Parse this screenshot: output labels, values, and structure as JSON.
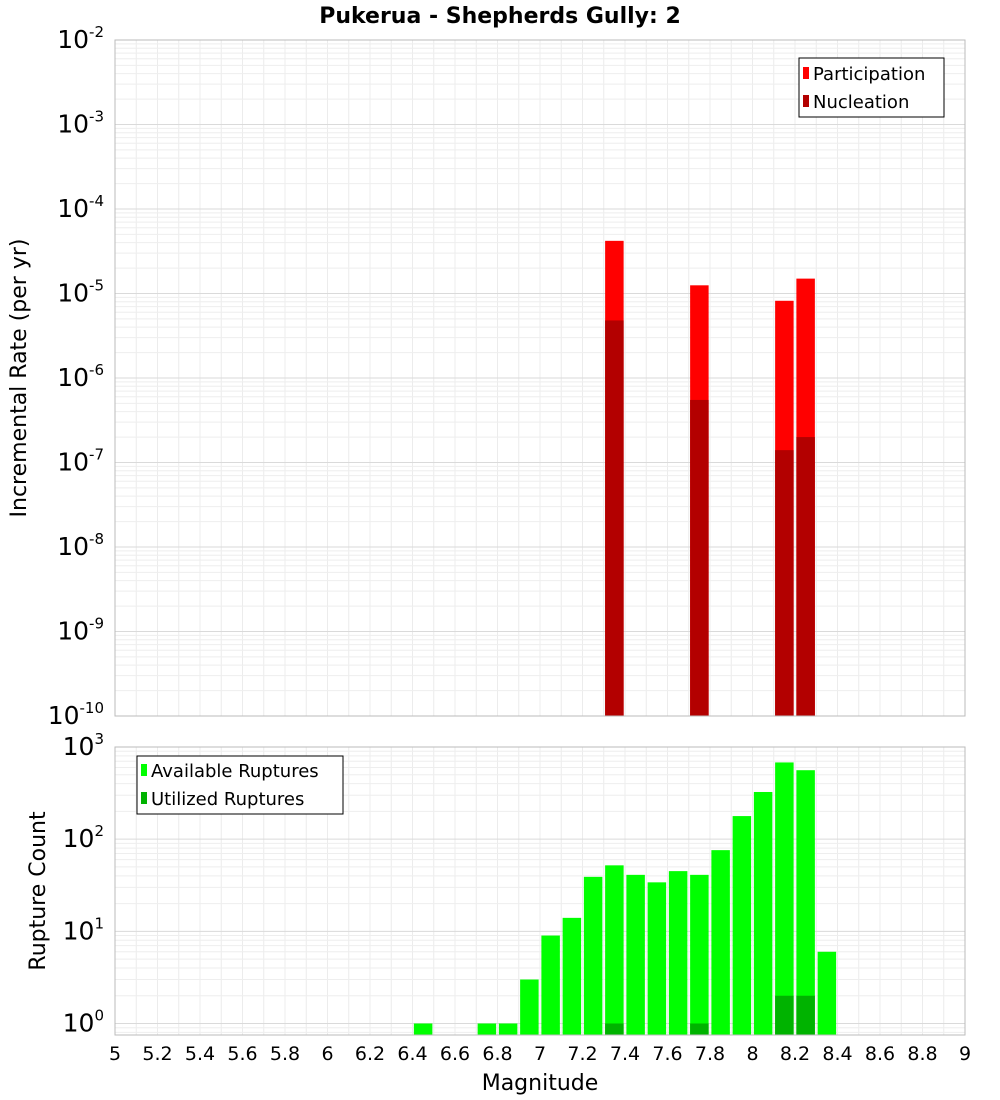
{
  "chart_data": [
    {
      "type": "bar",
      "title": "Pukerua - Shepherds Gully: 2",
      "xlabel": "Magnitude",
      "ylabel": "Incremental Rate (per yr)",
      "yscale": "log",
      "xlim": [
        5,
        9
      ],
      "ylim": [
        1e-10,
        0.01
      ],
      "y_tick_exponents": [
        -2,
        -3,
        -4,
        -5,
        -6,
        -7,
        -8,
        -9,
        -10
      ],
      "legend_position": "top-right",
      "grid": true,
      "series": [
        {
          "name": "Participation",
          "color": "#ff0000",
          "x": [
            7.35,
            7.75,
            8.15,
            8.25
          ],
          "values": [
            4.2e-05,
            1.25e-05,
            8.2e-06,
            1.5e-05
          ]
        },
        {
          "name": "Nucleation",
          "color": "#b30000",
          "x": [
            7.35,
            7.75,
            8.15,
            8.25
          ],
          "values": [
            4.8e-06,
            5.5e-07,
            1.4e-07,
            2e-07
          ]
        }
      ]
    },
    {
      "type": "bar",
      "xlabel": "Magnitude",
      "ylabel": "Rupture Count",
      "yscale": "log",
      "xlim": [
        5,
        9
      ],
      "ylim": [
        0.75,
        1000
      ],
      "y_tick_exponents": [
        3,
        2,
        1,
        0
      ],
      "x_tick_labels": [
        "5",
        "5.2",
        "5.4",
        "5.6",
        "5.8",
        "6",
        "6.2",
        "6.4",
        "6.6",
        "6.8",
        "7",
        "7.2",
        "7.4",
        "7.6",
        "7.8",
        "8",
        "8.2",
        "8.4",
        "8.6",
        "8.8",
        "9"
      ],
      "legend_position": "top-left",
      "grid": true,
      "series": [
        {
          "name": "Available Ruptures",
          "color": "#00ff00",
          "x": [
            6.45,
            6.75,
            6.85,
            6.95,
            7.05,
            7.15,
            7.25,
            7.35,
            7.45,
            7.55,
            7.65,
            7.75,
            7.85,
            7.95,
            8.05,
            8.15,
            8.25,
            8.35
          ],
          "values": [
            1,
            1,
            1,
            3,
            9,
            14,
            39,
            52,
            41,
            34,
            45,
            41,
            76,
            178,
            325,
            680,
            560,
            6
          ]
        },
        {
          "name": "Utilized Ruptures",
          "color": "#00b300",
          "x": [
            7.35,
            7.75,
            8.15,
            8.25
          ],
          "values": [
            1,
            1,
            2,
            2
          ]
        }
      ]
    }
  ]
}
